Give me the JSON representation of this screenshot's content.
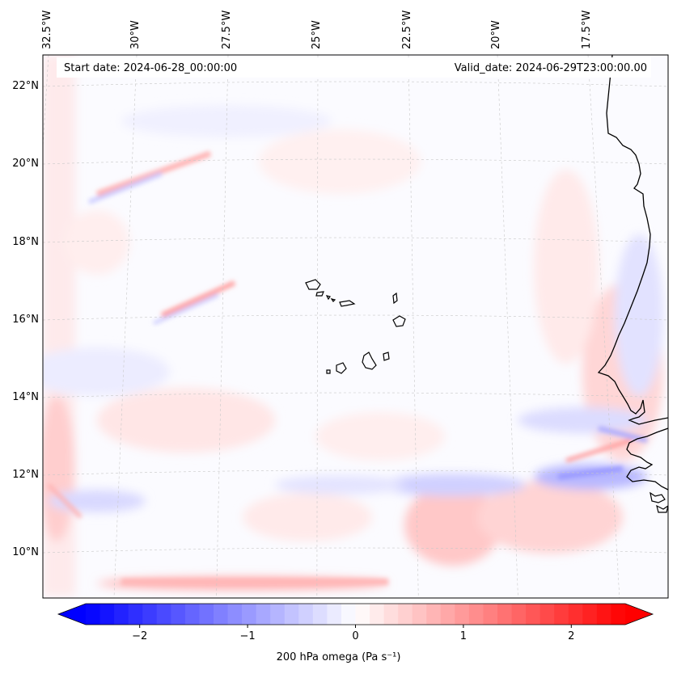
{
  "map": {
    "start_date": "Start date: 2024-06-28_00:00:00",
    "valid_date": "Valid_date: 2024-06-29T23:00:00.00",
    "lon_labels": [
      "32.5°W",
      "30°W",
      "27.5°W",
      "25°W",
      "22.5°W",
      "20°W",
      "17.5°W"
    ],
    "lat_labels": [
      "22°N",
      "20°N",
      "18°N",
      "16°N",
      "14°N",
      "12°N",
      "10°N"
    ],
    "colors": {
      "negative": "#0000ff",
      "neutral": "#ffffff",
      "positive": "#ff0000",
      "coastline": "#000000",
      "gridline": "#c8c8c8"
    }
  },
  "colorbar": {
    "label": "200 hPa omega (Pa s⁻¹)",
    "ticks": [
      "−2",
      "−1",
      "0",
      "1",
      "2"
    ],
    "tick_values": [
      -2,
      -1,
      0,
      1,
      2
    ],
    "range": [
      -2.5,
      2.5
    ],
    "levels": 38
  }
}
